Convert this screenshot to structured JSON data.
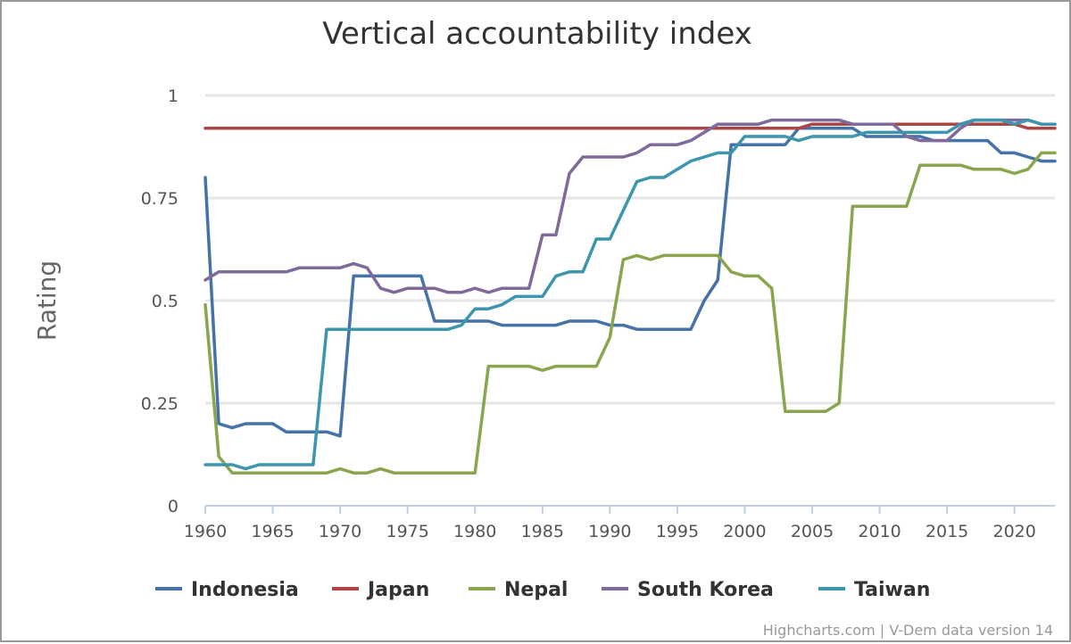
{
  "chart_data": {
    "type": "line",
    "title": "Vertical accountability index",
    "ylabel": "Rating",
    "xlabel": "",
    "xlim": [
      1960,
      2023
    ],
    "ylim": [
      0,
      1
    ],
    "x_ticks": [
      "1960",
      "1965",
      "1970",
      "1975",
      "1980",
      "1985",
      "1990",
      "1995",
      "2000",
      "2005",
      "2010",
      "2015",
      "2020"
    ],
    "y_ticks": [
      {
        "value": 0,
        "label": "0"
      },
      {
        "value": 0.25,
        "label": "0.25"
      },
      {
        "value": 0.5,
        "label": "0.5"
      },
      {
        "value": 0.75,
        "label": "0.75"
      },
      {
        "value": 1,
        "label": "1"
      }
    ],
    "grid": true,
    "legend_position": "bottom",
    "x_start": 1960,
    "series": [
      {
        "name": "Indonesia",
        "color": "#4572a7",
        "values": [
          0.8,
          0.2,
          0.19,
          0.2,
          0.2,
          0.2,
          0.18,
          0.18,
          0.18,
          0.18,
          0.17,
          0.56,
          0.56,
          0.56,
          0.56,
          0.56,
          0.56,
          0.45,
          0.45,
          0.45,
          0.45,
          0.45,
          0.44,
          0.44,
          0.44,
          0.44,
          0.44,
          0.45,
          0.45,
          0.45,
          0.44,
          0.44,
          0.43,
          0.43,
          0.43,
          0.43,
          0.43,
          0.5,
          0.55,
          0.88,
          0.88,
          0.88,
          0.88,
          0.88,
          0.92,
          0.92,
          0.92,
          0.92,
          0.92,
          0.9,
          0.9,
          0.9,
          0.9,
          0.9,
          0.89,
          0.89,
          0.89,
          0.89,
          0.89,
          0.86,
          0.86,
          0.85,
          0.84,
          0.84
        ]
      },
      {
        "name": "Japan",
        "color": "#aa4643",
        "values": [
          0.92,
          0.92,
          0.92,
          0.92,
          0.92,
          0.92,
          0.92,
          0.92,
          0.92,
          0.92,
          0.92,
          0.92,
          0.92,
          0.92,
          0.92,
          0.92,
          0.92,
          0.92,
          0.92,
          0.92,
          0.92,
          0.92,
          0.92,
          0.92,
          0.92,
          0.92,
          0.92,
          0.92,
          0.92,
          0.92,
          0.92,
          0.92,
          0.92,
          0.92,
          0.92,
          0.92,
          0.92,
          0.92,
          0.92,
          0.92,
          0.92,
          0.92,
          0.92,
          0.92,
          0.92,
          0.93,
          0.93,
          0.93,
          0.93,
          0.93,
          0.93,
          0.93,
          0.93,
          0.93,
          0.93,
          0.93,
          0.93,
          0.93,
          0.93,
          0.93,
          0.93,
          0.92,
          0.92,
          0.92
        ]
      },
      {
        "name": "Nepal",
        "color": "#89a54e",
        "values": [
          0.49,
          0.12,
          0.08,
          0.08,
          0.08,
          0.08,
          0.08,
          0.08,
          0.08,
          0.08,
          0.09,
          0.08,
          0.08,
          0.09,
          0.08,
          0.08,
          0.08,
          0.08,
          0.08,
          0.08,
          0.08,
          0.34,
          0.34,
          0.34,
          0.34,
          0.33,
          0.34,
          0.34,
          0.34,
          0.34,
          0.41,
          0.6,
          0.61,
          0.6,
          0.61,
          0.61,
          0.61,
          0.61,
          0.61,
          0.57,
          0.56,
          0.56,
          0.53,
          0.23,
          0.23,
          0.23,
          0.23,
          0.25,
          0.73,
          0.73,
          0.73,
          0.73,
          0.73,
          0.83,
          0.83,
          0.83,
          0.83,
          0.82,
          0.82,
          0.82,
          0.81,
          0.82,
          0.86,
          0.86
        ]
      },
      {
        "name": "South Korea",
        "color": "#80699b",
        "values": [
          0.55,
          0.57,
          0.57,
          0.57,
          0.57,
          0.57,
          0.57,
          0.58,
          0.58,
          0.58,
          0.58,
          0.59,
          0.58,
          0.53,
          0.52,
          0.53,
          0.53,
          0.53,
          0.52,
          0.52,
          0.53,
          0.52,
          0.53,
          0.53,
          0.53,
          0.66,
          0.66,
          0.81,
          0.85,
          0.85,
          0.85,
          0.85,
          0.86,
          0.88,
          0.88,
          0.88,
          0.89,
          0.91,
          0.93,
          0.93,
          0.93,
          0.93,
          0.94,
          0.94,
          0.94,
          0.94,
          0.94,
          0.94,
          0.93,
          0.93,
          0.93,
          0.93,
          0.9,
          0.89,
          0.89,
          0.89,
          0.92,
          0.94,
          0.94,
          0.94,
          0.94,
          0.94,
          0.93,
          0.93
        ]
      },
      {
        "name": "Taiwan",
        "color": "#3d96ae",
        "values": [
          0.1,
          0.1,
          0.1,
          0.09,
          0.1,
          0.1,
          0.1,
          0.1,
          0.1,
          0.43,
          0.43,
          0.43,
          0.43,
          0.43,
          0.43,
          0.43,
          0.43,
          0.43,
          0.43,
          0.44,
          0.48,
          0.48,
          0.49,
          0.51,
          0.51,
          0.51,
          0.56,
          0.57,
          0.57,
          0.65,
          0.65,
          0.72,
          0.79,
          0.8,
          0.8,
          0.82,
          0.84,
          0.85,
          0.86,
          0.86,
          0.9,
          0.9,
          0.9,
          0.9,
          0.89,
          0.9,
          0.9,
          0.9,
          0.9,
          0.91,
          0.91,
          0.91,
          0.91,
          0.91,
          0.91,
          0.91,
          0.93,
          0.94,
          0.94,
          0.94,
          0.93,
          0.94,
          0.93,
          0.93
        ]
      }
    ]
  },
  "credits": "Highcharts.com | V-Dem data version 14"
}
